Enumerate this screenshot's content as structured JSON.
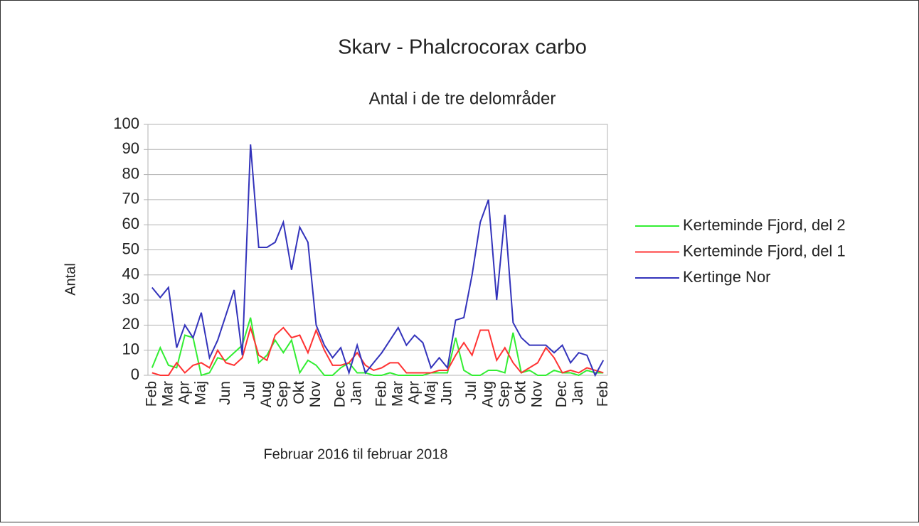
{
  "chart_data": {
    "type": "line",
    "title": "Skarv - Phalcrocorax carbo",
    "subtitle": "Antal i de tre delområder",
    "x_label": "Februar 2016 til februar 2018",
    "y_label": "Antal",
    "categories": [
      "Feb",
      null,
      "Mar",
      null,
      "Apr",
      null,
      "Maj",
      null,
      null,
      "Jun",
      null,
      null,
      "Jul",
      null,
      "Aug",
      null,
      "Sep",
      null,
      "Okt",
      null,
      "Nov",
      null,
      null,
      "Dec",
      null,
      "Jan",
      null,
      null,
      "Feb",
      null,
      "Mar",
      null,
      "Apr",
      null,
      "Maj",
      null,
      "Jun",
      null,
      null,
      "Jul",
      null,
      "Aug",
      null,
      "Sep",
      null,
      "Okt",
      null,
      "Nov",
      null,
      null,
      "Dec",
      null,
      "Jan",
      null,
      null,
      "Feb"
    ],
    "series": [
      {
        "name": "Kerteminde Fjord, del 2",
        "color": "#33ee33",
        "values": [
          3,
          11,
          4,
          3,
          16,
          15,
          0,
          1,
          7,
          6,
          9,
          12,
          23,
          5,
          8,
          14,
          9,
          14,
          1,
          6,
          4,
          0,
          0,
          3,
          5,
          1,
          1,
          0,
          0,
          1,
          0,
          0,
          0,
          0,
          1,
          1,
          1,
          15,
          2,
          0,
          0,
          2,
          2,
          1,
          17,
          1,
          2,
          0,
          0,
          2,
          1,
          1,
          0,
          2,
          1,
          1
        ]
      },
      {
        "name": "Kerteminde Fjord, del 1",
        "color": "#ff3333",
        "values": [
          1,
          0,
          0,
          5,
          1,
          4,
          5,
          3,
          10,
          5,
          4,
          7,
          19,
          8,
          6,
          16,
          19,
          15,
          16,
          9,
          18,
          10,
          4,
          4,
          5,
          9,
          4,
          2,
          3,
          5,
          5,
          1,
          1,
          1,
          1,
          2,
          2,
          8,
          13,
          8,
          18,
          18,
          6,
          11,
          5,
          1,
          3,
          5,
          11,
          7,
          1,
          2,
          1,
          3,
          2,
          1
        ]
      },
      {
        "name": "Kertinge Nor",
        "color": "#3333bb",
        "values": [
          35,
          31,
          35,
          11,
          20,
          15,
          25,
          7,
          14,
          24,
          34,
          8,
          92,
          51,
          51,
          53,
          61,
          42,
          59,
          53,
          20,
          12,
          7,
          11,
          1,
          12,
          1,
          5,
          9,
          14,
          19,
          12,
          16,
          13,
          3,
          7,
          3,
          22,
          23,
          40,
          61,
          70,
          30,
          64,
          21,
          15,
          12,
          12,
          12,
          9,
          12,
          5,
          9,
          8,
          0,
          6
        ]
      }
    ],
    "ylim": [
      0,
      100
    ],
    "yticks": [
      0,
      10,
      20,
      30,
      40,
      50,
      60,
      70,
      80,
      90,
      100
    ],
    "grid": true,
    "legend": "right"
  }
}
